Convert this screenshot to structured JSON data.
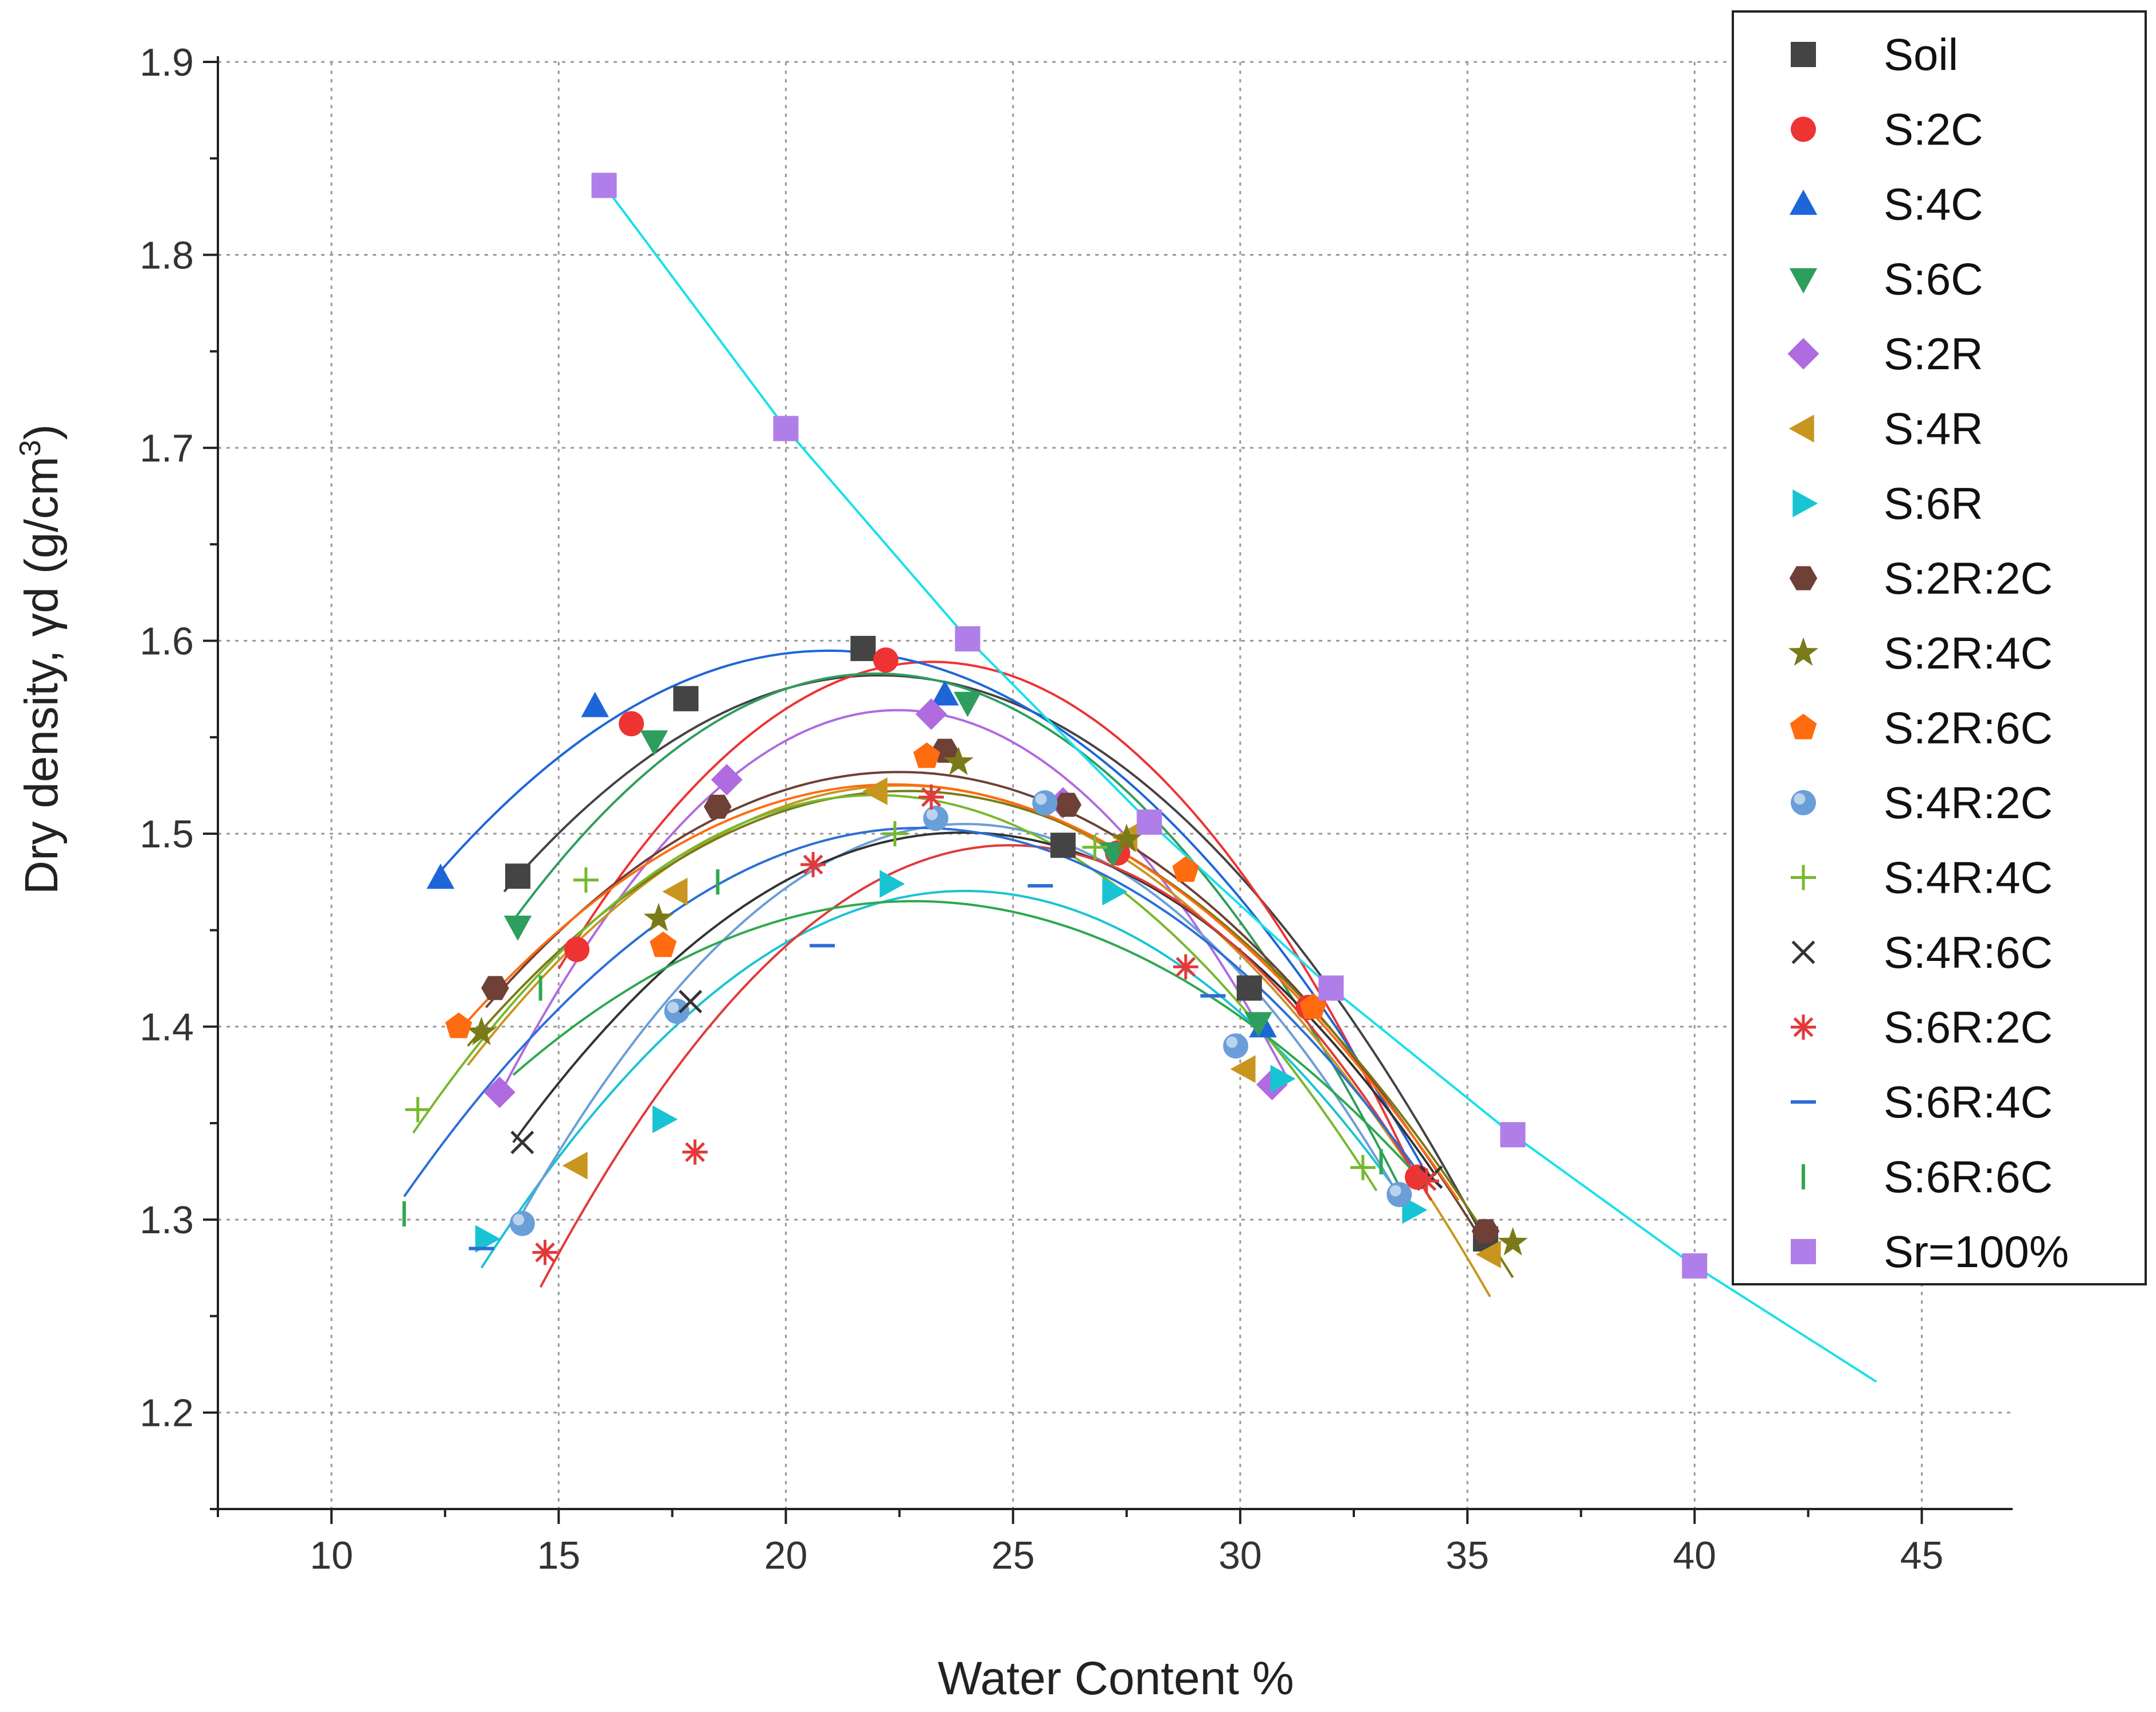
{
  "chart_data": {
    "type": "scatter",
    "xlabel": "Water Content %",
    "ylabel": {
      "main": "Dry density, γd (g/cm",
      "sup": "3",
      "close": ")"
    },
    "xlim": [
      7.5,
      47
    ],
    "ylim": [
      1.15,
      1.9
    ],
    "xticks": [
      10,
      15,
      20,
      25,
      30,
      35,
      40,
      45
    ],
    "yticks": [
      1.2,
      1.3,
      1.4,
      1.5,
      1.6,
      1.7,
      1.8,
      1.9
    ],
    "grid": true,
    "legend_position": "top-right",
    "series": [
      {
        "name": "Soil",
        "marker": "square",
        "color": "#444444",
        "x": [
          14.1,
          17.8,
          21.7,
          26.1,
          30.2,
          35.4
        ],
        "y": [
          1.478,
          1.57,
          1.596,
          1.494,
          1.42,
          1.29
        ],
        "fit": [
          13.8,
          35.3
        ],
        "fit_points": [
          [
            13.8,
            1.47
          ],
          [
            21.8,
            1.582
          ],
          [
            35.3,
            1.293
          ]
        ]
      },
      {
        "name": "S:2C",
        "marker": "circle",
        "color": "#ee3333",
        "x": [
          15.4,
          16.6,
          22.2,
          27.3,
          31.5,
          33.9
        ],
        "y": [
          1.44,
          1.557,
          1.59,
          1.49,
          1.41,
          1.322
        ],
        "fit": [
          15.0,
          33.9
        ],
        "fit_points": [
          [
            15.0,
            1.43
          ],
          [
            21.9,
            1.585
          ],
          [
            33.9,
            1.32
          ]
        ]
      },
      {
        "name": "S:4C",
        "marker": "triangle-up",
        "color": "#1e66d8",
        "x": [
          12.4,
          15.8,
          23.5,
          30.5
        ],
        "y": [
          1.477,
          1.566,
          1.572,
          1.4
        ],
        "fit": [
          12.3,
          34.0
        ],
        "fit_points": [
          [
            12.3,
            1.478
          ],
          [
            20.2,
            1.594
          ],
          [
            34.0,
            1.328
          ]
        ]
      },
      {
        "name": "S:6C",
        "marker": "triangle-down",
        "color": "#2e9e5e",
        "x": [
          14.1,
          17.1,
          24.0,
          27.2,
          30.4
        ],
        "y": [
          1.452,
          1.548,
          1.568,
          1.49,
          1.402
        ],
        "fit": [
          14.0,
          33.7
        ],
        "fit_points": [
          [
            14.0,
            1.455
          ],
          [
            22.0,
            1.583
          ],
          [
            33.7,
            1.308
          ]
        ]
      },
      {
        "name": "S:2R",
        "marker": "diamond",
        "color": "#b06be0",
        "x": [
          13.7,
          18.7,
          23.2,
          26.1,
          30.7
        ],
        "y": [
          1.366,
          1.528,
          1.562,
          1.516,
          1.37
        ],
        "fit": [
          13.8,
          31.0
        ],
        "fit_points": [
          [
            13.8,
            1.369
          ],
          [
            22.6,
            1.564
          ],
          [
            31.0,
            1.375
          ]
        ]
      },
      {
        "name": "S:4R",
        "marker": "triangle-left",
        "color": "#c8961e",
        "x": [
          15.4,
          17.6,
          22.0,
          27.5,
          30.1,
          35.5
        ],
        "y": [
          1.328,
          1.47,
          1.522,
          1.498,
          1.378,
          1.282
        ],
        "fit": [
          13.0,
          35.5
        ],
        "fit_points": [
          [
            13.0,
            1.38
          ],
          [
            22.5,
            1.525
          ],
          [
            35.5,
            1.26
          ]
        ]
      },
      {
        "name": "S:6R",
        "marker": "triangle-right",
        "color": "#18c4d4",
        "x": [
          13.4,
          17.3,
          22.3,
          27.2,
          30.9,
          33.8
        ],
        "y": [
          1.29,
          1.352,
          1.474,
          1.47,
          1.373,
          1.305
        ],
        "fit": [
          13.3,
          33.8
        ],
        "fit_points": [
          [
            13.3,
            1.275
          ],
          [
            23.5,
            1.47
          ],
          [
            33.8,
            1.303
          ]
        ]
      },
      {
        "name": "S:2R:2C",
        "marker": "hexagon",
        "color": "#6e4036",
        "x": [
          13.6,
          18.5,
          23.5,
          26.2,
          35.4
        ],
        "y": [
          1.42,
          1.514,
          1.543,
          1.515,
          1.294
        ],
        "fit": [
          13.4,
          35.3
        ],
        "fit_points": [
          [
            13.4,
            1.41
          ],
          [
            22.5,
            1.532
          ],
          [
            35.3,
            1.29
          ]
        ]
      },
      {
        "name": "S:2R:4C",
        "marker": "star",
        "color": "#7a7a18",
        "x": [
          13.3,
          17.2,
          23.8,
          27.5,
          36.0
        ],
        "y": [
          1.397,
          1.456,
          1.537,
          1.497,
          1.288
        ],
        "fit": [
          13.0,
          36.0
        ],
        "fit_points": [
          [
            13.0,
            1.39
          ],
          [
            23.0,
            1.522
          ],
          [
            36.0,
            1.27
          ]
        ]
      },
      {
        "name": "S:2R:6C",
        "marker": "pentagon",
        "color": "#ff6b0f",
        "x": [
          12.8,
          17.3,
          23.1,
          28.8,
          31.6
        ],
        "y": [
          1.4,
          1.442,
          1.54,
          1.481,
          1.41
        ],
        "fit": [
          12.7,
          34.8
        ],
        "fit_points": [
          [
            12.7,
            1.395
          ],
          [
            23.0,
            1.525
          ],
          [
            34.8,
            1.31
          ]
        ]
      },
      {
        "name": "S:4R:2C",
        "marker": "sphere",
        "color": "#6a9ed8",
        "x": [
          14.2,
          17.6,
          23.3,
          25.7,
          29.9,
          33.5
        ],
        "y": [
          1.298,
          1.408,
          1.508,
          1.516,
          1.39,
          1.313
        ],
        "fit": [
          14.0,
          33.5
        ],
        "fit_points": [
          [
            14.0,
            1.295
          ],
          [
            23.8,
            1.505
          ],
          [
            33.5,
            1.312
          ]
        ]
      },
      {
        "name": "S:4R:4C",
        "marker": "plus",
        "color": "#77b82e",
        "x": [
          11.9,
          15.6,
          22.4,
          26.8,
          32.7
        ],
        "y": [
          1.357,
          1.476,
          1.5,
          1.493,
          1.327
        ],
        "fit": [
          11.8,
          33.0
        ],
        "fit_points": [
          [
            11.8,
            1.345
          ],
          [
            22.0,
            1.52
          ],
          [
            33.0,
            1.315
          ]
        ]
      },
      {
        "name": "S:4R:6C",
        "marker": "x",
        "color": "#333333",
        "x": [
          14.2,
          17.9,
          34.2
        ],
        "y": [
          1.34,
          1.413,
          1.322
        ],
        "fit": [
          14.0,
          34.3
        ],
        "fit_points": [
          [
            14.0,
            1.34
          ],
          [
            24.5,
            1.5
          ],
          [
            34.3,
            1.323
          ]
        ]
      },
      {
        "name": "S:6R:2C",
        "marker": "asterisk",
        "color": "#e23a3a",
        "x": [
          14.7,
          18.0,
          20.6,
          23.2,
          28.8,
          34.1
        ],
        "y": [
          1.283,
          1.335,
          1.484,
          1.519,
          1.431,
          1.32
        ],
        "fit": [
          14.6,
          34.2
        ],
        "fit_points": [
          [
            14.6,
            1.265
          ],
          [
            24.8,
            1.494
          ],
          [
            34.2,
            1.31
          ]
        ]
      },
      {
        "name": "S:6R:4C",
        "marker": "hline",
        "color": "#2b6fd6",
        "x": [
          13.3,
          20.8,
          25.6,
          29.4
        ],
        "y": [
          1.285,
          1.442,
          1.473,
          1.416
        ],
        "fit": [
          11.6,
          34.0
        ],
        "fit_points": [
          [
            11.6,
            1.312
          ],
          [
            23.0,
            1.503
          ],
          [
            34.0,
            1.322
          ]
        ]
      },
      {
        "name": "S:6R:6C",
        "marker": "vline",
        "color": "#2ea84e",
        "x": [
          11.6,
          14.6,
          18.5,
          33.1
        ],
        "y": [
          1.303,
          1.42,
          1.475,
          1.33
        ],
        "fit": [
          14.0,
          34.0
        ],
        "fit_points": [
          [
            14.0,
            1.375
          ],
          [
            23.0,
            1.465
          ],
          [
            34.0,
            1.32
          ]
        ]
      },
      {
        "name": "Sr=100%",
        "marker": "square",
        "color": "#b07ee8",
        "x": [
          16.0,
          20.0,
          24.0,
          28.0,
          32.0,
          36.0,
          40.0
        ],
        "y": [
          1.836,
          1.71,
          1.601,
          1.506,
          1.42,
          1.344,
          1.276
        ],
        "line_color": "#19e0ea",
        "line": [
          [
            16.0,
            1.836
          ],
          [
            20.0,
            1.71
          ],
          [
            24.0,
            1.601
          ],
          [
            28.0,
            1.506
          ],
          [
            32.0,
            1.42
          ],
          [
            36.0,
            1.344
          ],
          [
            40.0,
            1.276
          ],
          [
            44.0,
            1.216
          ]
        ]
      }
    ]
  }
}
